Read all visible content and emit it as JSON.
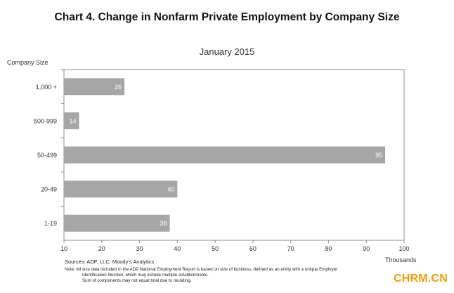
{
  "title": "Chart 4. Change in Nonfarm Private Employment by Company Size",
  "chart_data": {
    "type": "bar",
    "orientation": "horizontal",
    "subtitle": "January 2015",
    "ylabel": "Company Size",
    "xlabel": "Thousands",
    "categories": [
      "1,000 +",
      "500-999",
      "50-499",
      "20-49",
      "1-19"
    ],
    "values": [
      26,
      14,
      95,
      40,
      38
    ],
    "xlim": [
      10,
      100
    ],
    "xticks": [
      10,
      20,
      30,
      40,
      50,
      60,
      70,
      80,
      90,
      100
    ],
    "grid": false,
    "data_labels": true,
    "bar_color": "#a6a6a6",
    "label_color": "#ffffff"
  },
  "sources": "Sources: ADP, LLC; Moody’s Analytics",
  "note_line1": "Note: All size data included in the ADP National Employment Report is based on size of business, defined as an entity with a unique Employer",
  "note_line2": "Identification Number, which may include multiple establishments.",
  "note_line3": "Sum of components may not equal total due to rounding.",
  "watermark": "CHRM.CN"
}
